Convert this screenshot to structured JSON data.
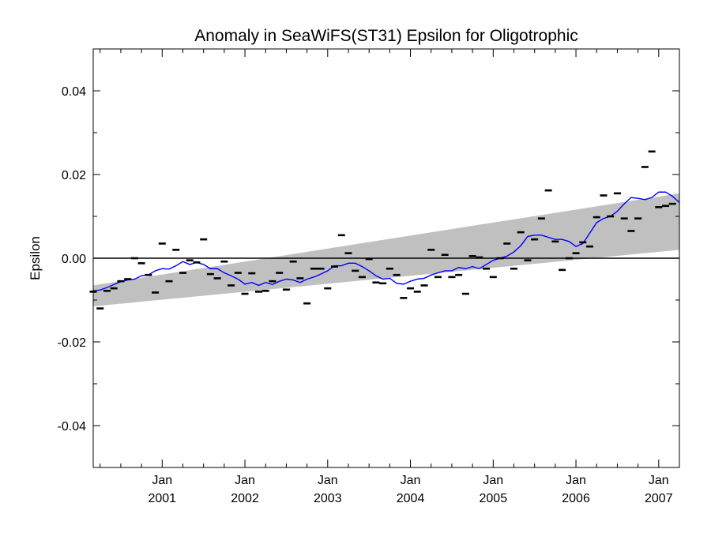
{
  "chart_data": {
    "type": "scatter",
    "title": "Anomaly in SeaWiFS(ST31) Epsilon for Oligotrophic",
    "xlabel": "",
    "ylabel": "Epsilon",
    "xlim": [
      "2000-03",
      "2007-04"
    ],
    "ylim": [
      -0.05,
      0.05
    ],
    "grid": false,
    "legend": "none",
    "y_ticks": [
      "0.04",
      "0.02",
      "0.00",
      "-0.02",
      "-0.04"
    ],
    "y_tick_values": [
      0.04,
      0.02,
      0.0,
      -0.02,
      -0.04
    ],
    "x_ticks": [
      {
        "date": "2001-01",
        "month": "Jan",
        "year": "2001"
      },
      {
        "date": "2002-01",
        "month": "Jan",
        "year": "2002"
      },
      {
        "date": "2003-01",
        "month": "Jan",
        "year": "2003"
      },
      {
        "date": "2004-01",
        "month": "Jan",
        "year": "2004"
      },
      {
        "date": "2005-01",
        "month": "Jan",
        "year": "2005"
      },
      {
        "date": "2006-01",
        "month": "Jan",
        "year": "2006"
      },
      {
        "date": "2007-01",
        "month": "Jan",
        "year": "2007"
      }
    ],
    "zero_line": 0.0,
    "colors": {
      "points": "#000000",
      "mean_line": "#0000ff",
      "band": "#c0c0c0",
      "zero_line": "#000000"
    },
    "band": {
      "upper": [
        [
          "2000-03",
          -0.0065
        ],
        [
          "2007-04",
          0.0155
        ]
      ],
      "lower": [
        [
          "2000-03",
          -0.0115
        ],
        [
          "2007-04",
          0.002
        ]
      ]
    },
    "series": [
      {
        "type": "scatter",
        "marker": "dash",
        "points": [
          [
            "2000-03",
            -0.008
          ],
          [
            "2000-04",
            -0.012
          ],
          [
            "2000-05",
            -0.0078
          ],
          [
            "2000-06",
            -0.0072
          ],
          [
            "2000-07",
            -0.0055
          ],
          [
            "2000-08",
            -0.005
          ],
          [
            "2000-09",
            0.0
          ],
          [
            "2000-10",
            -0.0012
          ],
          [
            "2000-11",
            -0.004
          ],
          [
            "2000-12",
            -0.0082
          ],
          [
            "2001-01",
            0.0035
          ],
          [
            "2001-02",
            -0.0055
          ],
          [
            "2001-03",
            0.002
          ],
          [
            "2001-04",
            -0.0035
          ],
          [
            "2001-05",
            -0.0005
          ],
          [
            "2001-06",
            -0.001
          ],
          [
            "2001-07",
            0.0045
          ],
          [
            "2001-08",
            -0.0038
          ],
          [
            "2001-09",
            -0.0048
          ],
          [
            "2001-10",
            -0.0008
          ],
          [
            "2001-11",
            -0.0065
          ],
          [
            "2001-12",
            -0.0035
          ],
          [
            "2002-01",
            -0.0085
          ],
          [
            "2002-02",
            -0.0036
          ],
          [
            "2002-03",
            -0.008
          ],
          [
            "2002-04",
            -0.0078
          ],
          [
            "2002-05",
            -0.0055
          ],
          [
            "2002-06",
            -0.0035
          ],
          [
            "2002-07",
            -0.0075
          ],
          [
            "2002-08",
            -0.0008
          ],
          [
            "2002-09",
            -0.0048
          ],
          [
            "2002-10",
            -0.0108
          ],
          [
            "2002-11",
            -0.0025
          ],
          [
            "2002-12",
            -0.0025
          ],
          [
            "2003-01",
            -0.0072
          ],
          [
            "2003-02",
            -0.002
          ],
          [
            "2003-03",
            0.0055
          ],
          [
            "2003-04",
            0.0012
          ],
          [
            "2003-05",
            -0.003
          ],
          [
            "2003-06",
            -0.0045
          ],
          [
            "2003-07",
            -0.0002
          ],
          [
            "2003-08",
            -0.0058
          ],
          [
            "2003-09",
            -0.006
          ],
          [
            "2003-10",
            -0.0025
          ],
          [
            "2003-11",
            -0.004
          ],
          [
            "2003-12",
            -0.0095
          ],
          [
            "2004-01",
            -0.0072
          ],
          [
            "2004-02",
            -0.008
          ],
          [
            "2004-03",
            -0.0065
          ],
          [
            "2004-04",
            0.002
          ],
          [
            "2004-05",
            -0.0045
          ],
          [
            "2004-06",
            0.0008
          ],
          [
            "2004-07",
            -0.0045
          ],
          [
            "2004-08",
            -0.004
          ],
          [
            "2004-09",
            -0.0085
          ],
          [
            "2004-10",
            0.0005
          ],
          [
            "2004-11",
            0.0002
          ],
          [
            "2004-12",
            -0.0025
          ],
          [
            "2005-01",
            -0.0045
          ],
          [
            "2005-02",
            0.0
          ],
          [
            "2005-03",
            0.0035
          ],
          [
            "2005-04",
            -0.0025
          ],
          [
            "2005-05",
            0.0062
          ],
          [
            "2005-06",
            -0.0005
          ],
          [
            "2005-07",
            0.0045
          ],
          [
            "2005-08",
            0.0095
          ],
          [
            "2005-09",
            0.0162
          ],
          [
            "2005-10",
            0.004
          ],
          [
            "2005-11",
            -0.0028
          ],
          [
            "2005-12",
            0.0
          ],
          [
            "2006-01",
            0.0012
          ],
          [
            "2006-02",
            0.0038
          ],
          [
            "2006-03",
            0.0028
          ],
          [
            "2006-04",
            0.0098
          ],
          [
            "2006-05",
            0.015
          ],
          [
            "2006-06",
            0.01
          ],
          [
            "2006-07",
            0.0155
          ],
          [
            "2006-08",
            0.0095
          ],
          [
            "2006-09",
            0.0065
          ],
          [
            "2006-10",
            0.0095
          ],
          [
            "2006-11",
            0.0218
          ],
          [
            "2006-12",
            0.0255
          ],
          [
            "2007-01",
            0.0122
          ],
          [
            "2007-02",
            0.0125
          ],
          [
            "2007-03",
            0.013
          ]
        ]
      },
      {
        "type": "line",
        "color": "#0000ff",
        "points": [
          [
            "2000-03",
            -0.0078
          ],
          [
            "2000-04",
            -0.0076
          ],
          [
            "2000-05",
            -0.007
          ],
          [
            "2000-06",
            -0.0063
          ],
          [
            "2000-07",
            -0.0056
          ],
          [
            "2000-08",
            -0.0052
          ],
          [
            "2000-09",
            -0.005
          ],
          [
            "2000-10",
            -0.0042
          ],
          [
            "2000-11",
            -0.004
          ],
          [
            "2000-12",
            -0.003
          ],
          [
            "2001-01",
            -0.0025
          ],
          [
            "2001-02",
            -0.0026
          ],
          [
            "2001-03",
            -0.0018
          ],
          [
            "2001-04",
            -0.0008
          ],
          [
            "2001-05",
            -0.0015
          ],
          [
            "2001-06",
            -0.001
          ],
          [
            "2001-07",
            -0.0015
          ],
          [
            "2001-08",
            -0.0025
          ],
          [
            "2001-09",
            -0.0025
          ],
          [
            "2001-10",
            -0.0035
          ],
          [
            "2001-11",
            -0.0042
          ],
          [
            "2001-12",
            -0.005
          ],
          [
            "2002-01",
            -0.0062
          ],
          [
            "2002-02",
            -0.0058
          ],
          [
            "2002-03",
            -0.0065
          ],
          [
            "2002-04",
            -0.0058
          ],
          [
            "2002-05",
            -0.0063
          ],
          [
            "2002-06",
            -0.0055
          ],
          [
            "2002-07",
            -0.005
          ],
          [
            "2002-08",
            -0.0052
          ],
          [
            "2002-09",
            -0.0058
          ],
          [
            "2002-10",
            -0.005
          ],
          [
            "2002-11",
            -0.0045
          ],
          [
            "2002-12",
            -0.0038
          ],
          [
            "2003-01",
            -0.003
          ],
          [
            "2003-02",
            -0.0018
          ],
          [
            "2003-03",
            -0.0018
          ],
          [
            "2003-04",
            -0.0012
          ],
          [
            "2003-05",
            -0.0012
          ],
          [
            "2003-06",
            -0.002
          ],
          [
            "2003-07",
            -0.003
          ],
          [
            "2003-08",
            -0.0042
          ],
          [
            "2003-09",
            -0.005
          ],
          [
            "2003-10",
            -0.0048
          ],
          [
            "2003-11",
            -0.006
          ],
          [
            "2003-12",
            -0.0062
          ],
          [
            "2004-01",
            -0.0055
          ],
          [
            "2004-02",
            -0.005
          ],
          [
            "2004-03",
            -0.0048
          ],
          [
            "2004-04",
            -0.004
          ],
          [
            "2004-05",
            -0.0035
          ],
          [
            "2004-06",
            -0.003
          ],
          [
            "2004-07",
            -0.003
          ],
          [
            "2004-08",
            -0.0022
          ],
          [
            "2004-09",
            -0.0025
          ],
          [
            "2004-10",
            -0.002
          ],
          [
            "2004-11",
            -0.0025
          ],
          [
            "2004-12",
            -0.0015
          ],
          [
            "2005-01",
            -0.0005
          ],
          [
            "2005-02",
            0.0
          ],
          [
            "2005-03",
            0.0005
          ],
          [
            "2005-04",
            0.0015
          ],
          [
            "2005-05",
            0.003
          ],
          [
            "2005-06",
            0.0052
          ],
          [
            "2005-07",
            0.0055
          ],
          [
            "2005-08",
            0.0055
          ],
          [
            "2005-09",
            0.005
          ],
          [
            "2005-10",
            0.0045
          ],
          [
            "2005-11",
            0.0045
          ],
          [
            "2005-12",
            0.004
          ],
          [
            "2006-01",
            0.0028
          ],
          [
            "2006-02",
            0.0035
          ],
          [
            "2006-03",
            0.006
          ],
          [
            "2006-04",
            0.0085
          ],
          [
            "2006-05",
            0.0095
          ],
          [
            "2006-06",
            0.01
          ],
          [
            "2006-07",
            0.0112
          ],
          [
            "2006-08",
            0.013
          ],
          [
            "2006-09",
            0.0145
          ],
          [
            "2006-10",
            0.0143
          ],
          [
            "2006-11",
            0.014
          ],
          [
            "2006-12",
            0.0145
          ],
          [
            "2007-01",
            0.0158
          ],
          [
            "2007-02",
            0.0158
          ],
          [
            "2007-03",
            0.0148
          ],
          [
            "2007-04",
            0.0133
          ]
        ]
      }
    ]
  }
}
